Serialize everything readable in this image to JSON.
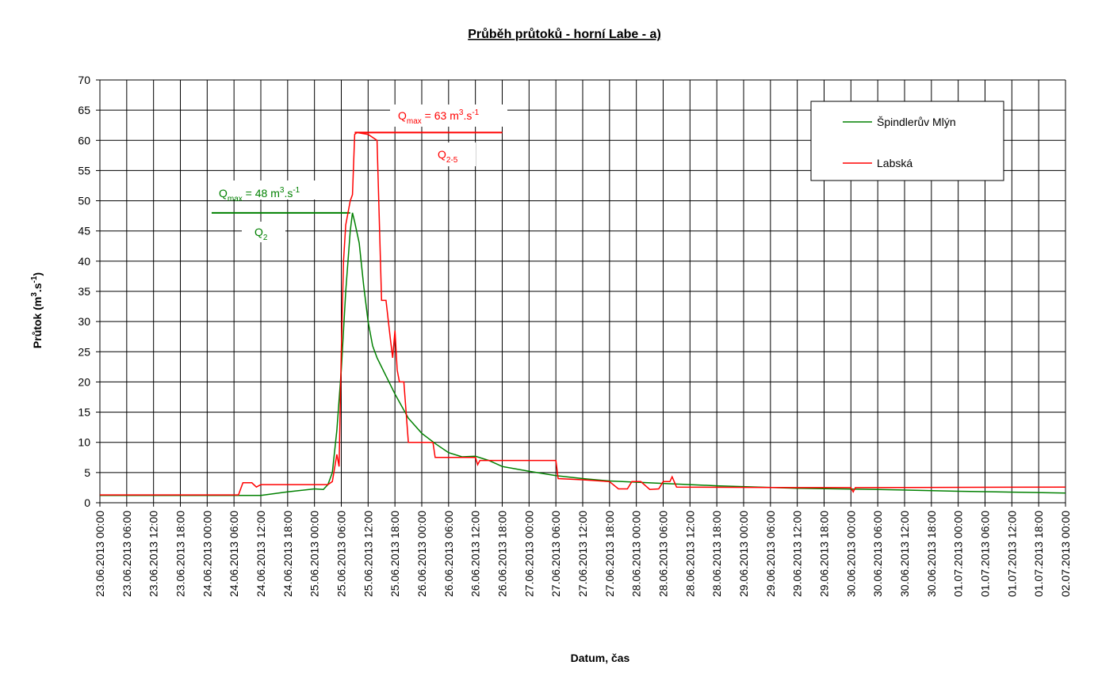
{
  "chart_data": {
    "type": "line",
    "title": "Průběh průtoků - horní Labe - a)",
    "x_label": "Datum, čas",
    "y_label": [
      "Průtok (m",
      "3",
      ".s",
      "-1",
      ")"
    ],
    "ylim": [
      0,
      70
    ],
    "yticks": [
      0,
      5,
      10,
      15,
      20,
      25,
      30,
      35,
      40,
      45,
      50,
      55,
      60,
      65,
      70
    ],
    "xlim": [
      "23.06.2013 00:00",
      "02.07.2013 00:00"
    ],
    "xticks": [
      "23.06.2013 00:00",
      "23.06.2013 06:00",
      "23.06.2013 12:00",
      "23.06.2013 18:00",
      "24.06.2013 00:00",
      "24.06.2013 06:00",
      "24.06.2013 12:00",
      "24.06.2013 18:00",
      "25.06.2013 00:00",
      "25.06.2013 06:00",
      "25.06.2013 12:00",
      "25.06.2013 18:00",
      "26.06.2013 00:00",
      "26.06.2013 06:00",
      "26.06.2013 12:00",
      "26.06.2013 18:00",
      "27.06.2013 00:00",
      "27.06.2013 06:00",
      "27.06.2013 12:00",
      "27.06.2013 18:00",
      "28.06.2013 00:00",
      "28.06.2013 06:00",
      "28.06.2013 12:00",
      "28.06.2013 18:00",
      "29.06.2013 00:00",
      "29.06.2013 06:00",
      "29.06.2013 12:00",
      "29.06.2013 18:00",
      "30.06.2013 00:00",
      "30.06.2013 06:00",
      "30.06.2013 12:00",
      "30.06.2013 18:00",
      "01.07.2013 00:00",
      "01.07.2013 06:00",
      "01.07.2013 12:00",
      "01.07.2013 18:00",
      "02.07.2013 00:00"
    ],
    "grid": true,
    "legend": "upper right",
    "series": [
      {
        "name": "Špindlerův Mlýn",
        "color": "#008000",
        "x": [
          "23.06.2013 00:00",
          "24.06.2013 12:00",
          "24.06.2013 18:00",
          "25.06.2013 00:00",
          "25.06.2013 02:00",
          "25.06.2013 03:00",
          "25.06.2013 04:00",
          "25.06.2013 05:00",
          "25.06.2013 06:00",
          "25.06.2013 07:00",
          "25.06.2013 08:00",
          "25.06.2013 08:30",
          "25.06.2013 09:00",
          "25.06.2013 10:00",
          "25.06.2013 11:00",
          "25.06.2013 12:00",
          "25.06.2013 13:00",
          "25.06.2013 14:00",
          "25.06.2013 16:00",
          "25.06.2013 18:00",
          "25.06.2013 21:00",
          "26.06.2013 00:00",
          "26.06.2013 03:00",
          "26.06.2013 06:00",
          "26.06.2013 09:00",
          "26.06.2013 12:00",
          "26.06.2013 15:00",
          "26.06.2013 18:00",
          "27.06.2013 00:00",
          "27.06.2013 06:00",
          "27.06.2013 12:00",
          "27.06.2013 18:00",
          "28.06.2013 06:00",
          "28.06.2013 18:00",
          "29.06.2013 12:00",
          "30.06.2013 06:00",
          "01.07.2013 00:00",
          "02.07.2013 00:00"
        ],
        "values": [
          1.2,
          1.2,
          1.8,
          2.3,
          2.2,
          3,
          5,
          12,
          22,
          35,
          45,
          48,
          46.5,
          43,
          36,
          30,
          26,
          24,
          21,
          18,
          14,
          11.5,
          9.8,
          8.3,
          7.6,
          7.7,
          7,
          6,
          5.2,
          4.5,
          4,
          3.6,
          3.2,
          2.8,
          2.4,
          2.2,
          1.9,
          1.6
        ]
      },
      {
        "name": "Labská",
        "color": "#ff0000",
        "x": [
          "23.06.2013 00:00",
          "24.06.2013 07:00",
          "24.06.2013 08:00",
          "24.06.2013 10:00",
          "24.06.2013 11:00",
          "24.06.2013 12:00",
          "25.06.2013 03:00",
          "25.06.2013 04:00",
          "25.06.2013 05:00",
          "25.06.2013 05:30",
          "25.06.2013 06:00",
          "25.06.2013 06:30",
          "25.06.2013 07:00",
          "25.06.2013 08:00",
          "25.06.2013 08:30",
          "25.06.2013 09:00",
          "25.06.2013 09:30",
          "25.06.2013 12:00",
          "25.06.2013 14:00",
          "25.06.2013 15:00",
          "25.06.2013 16:00",
          "25.06.2013 17:00",
          "25.06.2013 17:30",
          "25.06.2013 18:00",
          "25.06.2013 18:30",
          "25.06.2013 19:00",
          "25.06.2013 20:00",
          "25.06.2013 21:00",
          "26.06.2013 02:30",
          "26.06.2013 03:00",
          "26.06.2013 12:00",
          "26.06.2013 12:30",
          "26.06.2013 13:00",
          "27.06.2013 06:00",
          "27.06.2013 06:30",
          "27.06.2013 12:00",
          "27.06.2013 18:00",
          "27.06.2013 20:00",
          "27.06.2013 22:00",
          "27.06.2013 23:00",
          "28.06.2013 01:00",
          "28.06.2013 03:00",
          "28.06.2013 05:00",
          "28.06.2013 06:00",
          "28.06.2013 07:30",
          "28.06.2013 08:00",
          "28.06.2013 09:00",
          "29.06.2013 12:00",
          "30.06.2013 00:00",
          "30.06.2013 00:30",
          "30.06.2013 01:00",
          "02.07.2013 00:00"
        ],
        "values": [
          1.3,
          1.3,
          3.3,
          3.3,
          2.6,
          3,
          3,
          3.5,
          8,
          6,
          25,
          40,
          46,
          50,
          51,
          61,
          61.3,
          61,
          60,
          33.5,
          33.5,
          27,
          24,
          28.5,
          22,
          20,
          20,
          10,
          10,
          7.5,
          7.5,
          6.3,
          7,
          7,
          4,
          3.8,
          3.5,
          2.3,
          2.3,
          3.5,
          3.5,
          2.2,
          2.3,
          3.5,
          3.5,
          4.3,
          2.6,
          2.5,
          2.5,
          1.8,
          2.5,
          2.6
        ]
      }
    ],
    "reference_lines": [
      {
        "y": 48,
        "x": [
          "24.06.2013 01:00",
          "25.06.2013 08:00"
        ],
        "color": "#008000"
      },
      {
        "y": 61.3,
        "x": [
          "25.06.2013 09:00",
          "26.06.2013 18:00"
        ],
        "color": "#ff0000"
      }
    ],
    "annotations": [
      {
        "text": [
          "Q",
          "max",
          " = 48 m",
          "3",
          ".s",
          "-1"
        ],
        "color": "#008000"
      },
      {
        "text": [
          "Q",
          "2"
        ],
        "color": "#008000"
      },
      {
        "text": [
          "Q",
          "max",
          " = 63 m",
          "3",
          ".s",
          "-1"
        ],
        "color": "#ff0000"
      },
      {
        "text": [
          "Q",
          "2-5"
        ],
        "color": "#ff0000"
      }
    ]
  }
}
